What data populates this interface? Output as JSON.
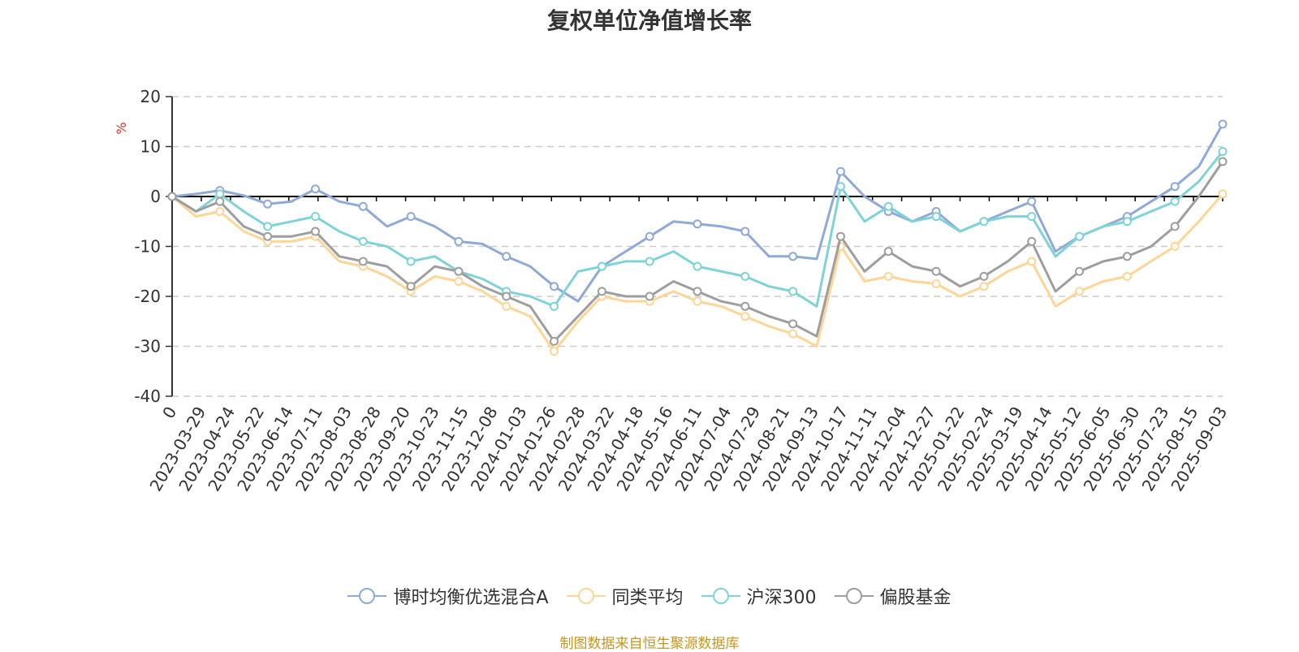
{
  "chart_data": {
    "type": "line",
    "title": "复权单位净值增长率",
    "ylabel": "%",
    "ylim": [
      -40,
      20
    ],
    "yticks": [
      20,
      10,
      0,
      -10,
      -20,
      -30,
      -40
    ],
    "grid": true,
    "legend_position": "bottom",
    "x_tick_labels": [
      "0",
      "2023-03-29",
      "2023-04-24",
      "2023-05-22",
      "2023-06-14",
      "2023-07-11",
      "2023-08-03",
      "2023-08-28",
      "2023-09-20",
      "2023-10-23",
      "2023-11-15",
      "2023-12-08",
      "2024-01-03",
      "2024-01-26",
      "2024-02-28",
      "2024-03-22",
      "2024-04-18",
      "2024-05-16",
      "2024-06-11",
      "2024-07-04",
      "2024-07-29",
      "2024-08-21",
      "2024-09-13",
      "2024-10-17",
      "2024-11-11",
      "2024-12-04",
      "2024-12-27",
      "2025-01-22",
      "2025-02-24",
      "2025-03-19",
      "2025-04-14",
      "2025-05-12",
      "2025-06-05",
      "2025-06-30",
      "2025-07-23",
      "2025-08-15",
      "2025-09-03"
    ],
    "series": [
      {
        "name": "博时均衡优选混合A",
        "color": "#8fa9d8",
        "values": [
          0,
          0.5,
          1.2,
          0.2,
          -1.5,
          -1,
          1.5,
          -1,
          -2,
          -6,
          -4,
          -6,
          -9,
          -9.5,
          -12,
          -14,
          -18,
          -21,
          -14,
          -11,
          -8,
          -5,
          -5.5,
          -6,
          -7,
          -12,
          -12,
          -12.5,
          5,
          0,
          -3,
          -5,
          -3,
          -7,
          -5,
          -3,
          -1,
          -11,
          -8,
          -6,
          -4,
          -1,
          2,
          6,
          14.5
        ]
      },
      {
        "name": "同类平均",
        "color": "#fdd596",
        "values": [
          0,
          -4,
          -3,
          -7,
          -9,
          -9,
          -8,
          -13,
          -14,
          -16,
          -19,
          -16,
          -17,
          -19,
          -22,
          -24,
          -31,
          -25,
          -20,
          -21,
          -21,
          -19,
          -21,
          -22,
          -24,
          -26,
          -27.5,
          -30,
          -10,
          -17,
          -16,
          -17,
          -17.5,
          -20,
          -18,
          -15,
          -13,
          -22,
          -19,
          -17,
          -16,
          -13,
          -10,
          -5,
          0.5
        ]
      },
      {
        "name": "沪深300",
        "color": "#7ed3d8",
        "values": [
          0,
          -3,
          0.5,
          -3,
          -6,
          -5,
          -4,
          -7,
          -9,
          -10,
          -13,
          -12,
          -15,
          -16.5,
          -19,
          -20,
          -22,
          -15,
          -14,
          -13,
          -13,
          -11,
          -14,
          -15,
          -16,
          -18,
          -19,
          -22,
          2,
          -5,
          -2,
          -5,
          -4,
          -7,
          -5,
          -4,
          -4,
          -12,
          -8,
          -6,
          -5,
          -3,
          -1,
          3,
          9
        ]
      },
      {
        "name": "偏股基金",
        "color": "#9e9e9e",
        "values": [
          0,
          -3,
          -1,
          -6,
          -8,
          -8,
          -7,
          -12,
          -13,
          -14,
          -18,
          -14,
          -15,
          -18,
          -20,
          -22,
          -29,
          -24,
          -19,
          -20,
          -20,
          -17,
          -19,
          -21,
          -22,
          -24,
          -25.5,
          -28,
          -8,
          -15,
          -11,
          -14,
          -15,
          -18,
          -16,
          -13,
          -9,
          -19,
          -15,
          -13,
          -12,
          -10,
          -6,
          0,
          7
        ]
      }
    ]
  },
  "source_note": "制图数据来自恒生聚源数据库",
  "axis_color": "#333333",
  "grid_color": "#cccccc",
  "zero_line_color": "#000000"
}
